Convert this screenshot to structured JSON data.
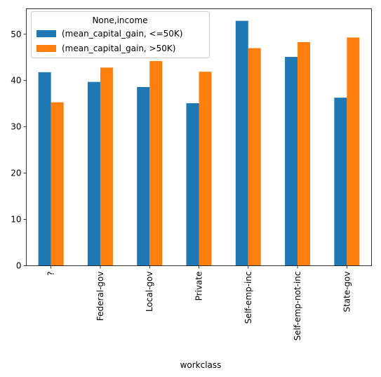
{
  "chart_data": {
    "type": "bar",
    "title": "",
    "xlabel": "workclass",
    "ylabel": "",
    "categories": [
      "?",
      "Federal-gov",
      "Local-gov",
      "Private",
      "Self-emp-inc",
      "Self-emp-not-inc",
      "State-gov"
    ],
    "series": [
      {
        "name": "(mean_capital_gain,  <=50K)",
        "color": "#1f77b4",
        "values": [
          41.8,
          39.7,
          38.6,
          35.1,
          52.9,
          45.1,
          36.3
        ]
      },
      {
        "name": "(mean_capital_gain,  >50K)",
        "color": "#ff7f0e",
        "values": [
          35.3,
          42.8,
          44.2,
          41.9,
          47.0,
          48.3,
          49.3
        ]
      }
    ],
    "ylim": [
      0,
      55.5
    ],
    "yticks": [
      0,
      10,
      20,
      30,
      40,
      50
    ],
    "grid": false,
    "legend": {
      "title": "None,income",
      "placement": "top-left"
    }
  }
}
